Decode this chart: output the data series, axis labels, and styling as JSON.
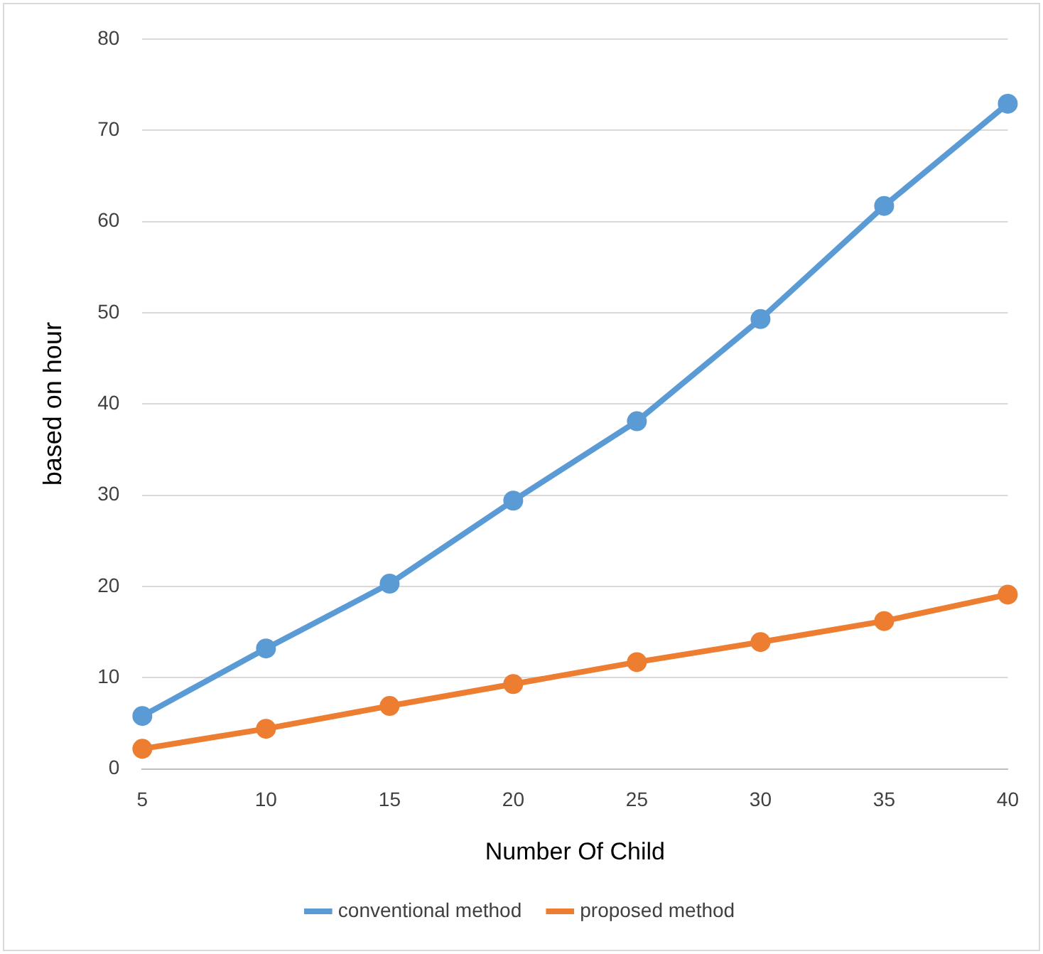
{
  "chart_data": {
    "type": "line",
    "xlabel": "Number Of Child",
    "ylabel": "based on hour",
    "categories": [
      "5",
      "10",
      "15",
      "20",
      "25",
      "30",
      "35",
      "40"
    ],
    "series": [
      {
        "name": "conventional method",
        "color": "#5b9bd5",
        "values": [
          5.8,
          13.2,
          20.3,
          29.4,
          38.1,
          49.3,
          61.7,
          72.9
        ]
      },
      {
        "name": "proposed method",
        "color": "#ed7d31",
        "values": [
          2.2,
          4.4,
          6.9,
          9.3,
          11.7,
          13.9,
          16.2,
          19.1
        ]
      }
    ],
    "ylim": [
      0,
      80
    ],
    "yticks": [
      0,
      10,
      20,
      30,
      40,
      50,
      60,
      70,
      80
    ],
    "grid": "y",
    "legend": "bottom",
    "marker": "circle",
    "line_style": "solid"
  }
}
